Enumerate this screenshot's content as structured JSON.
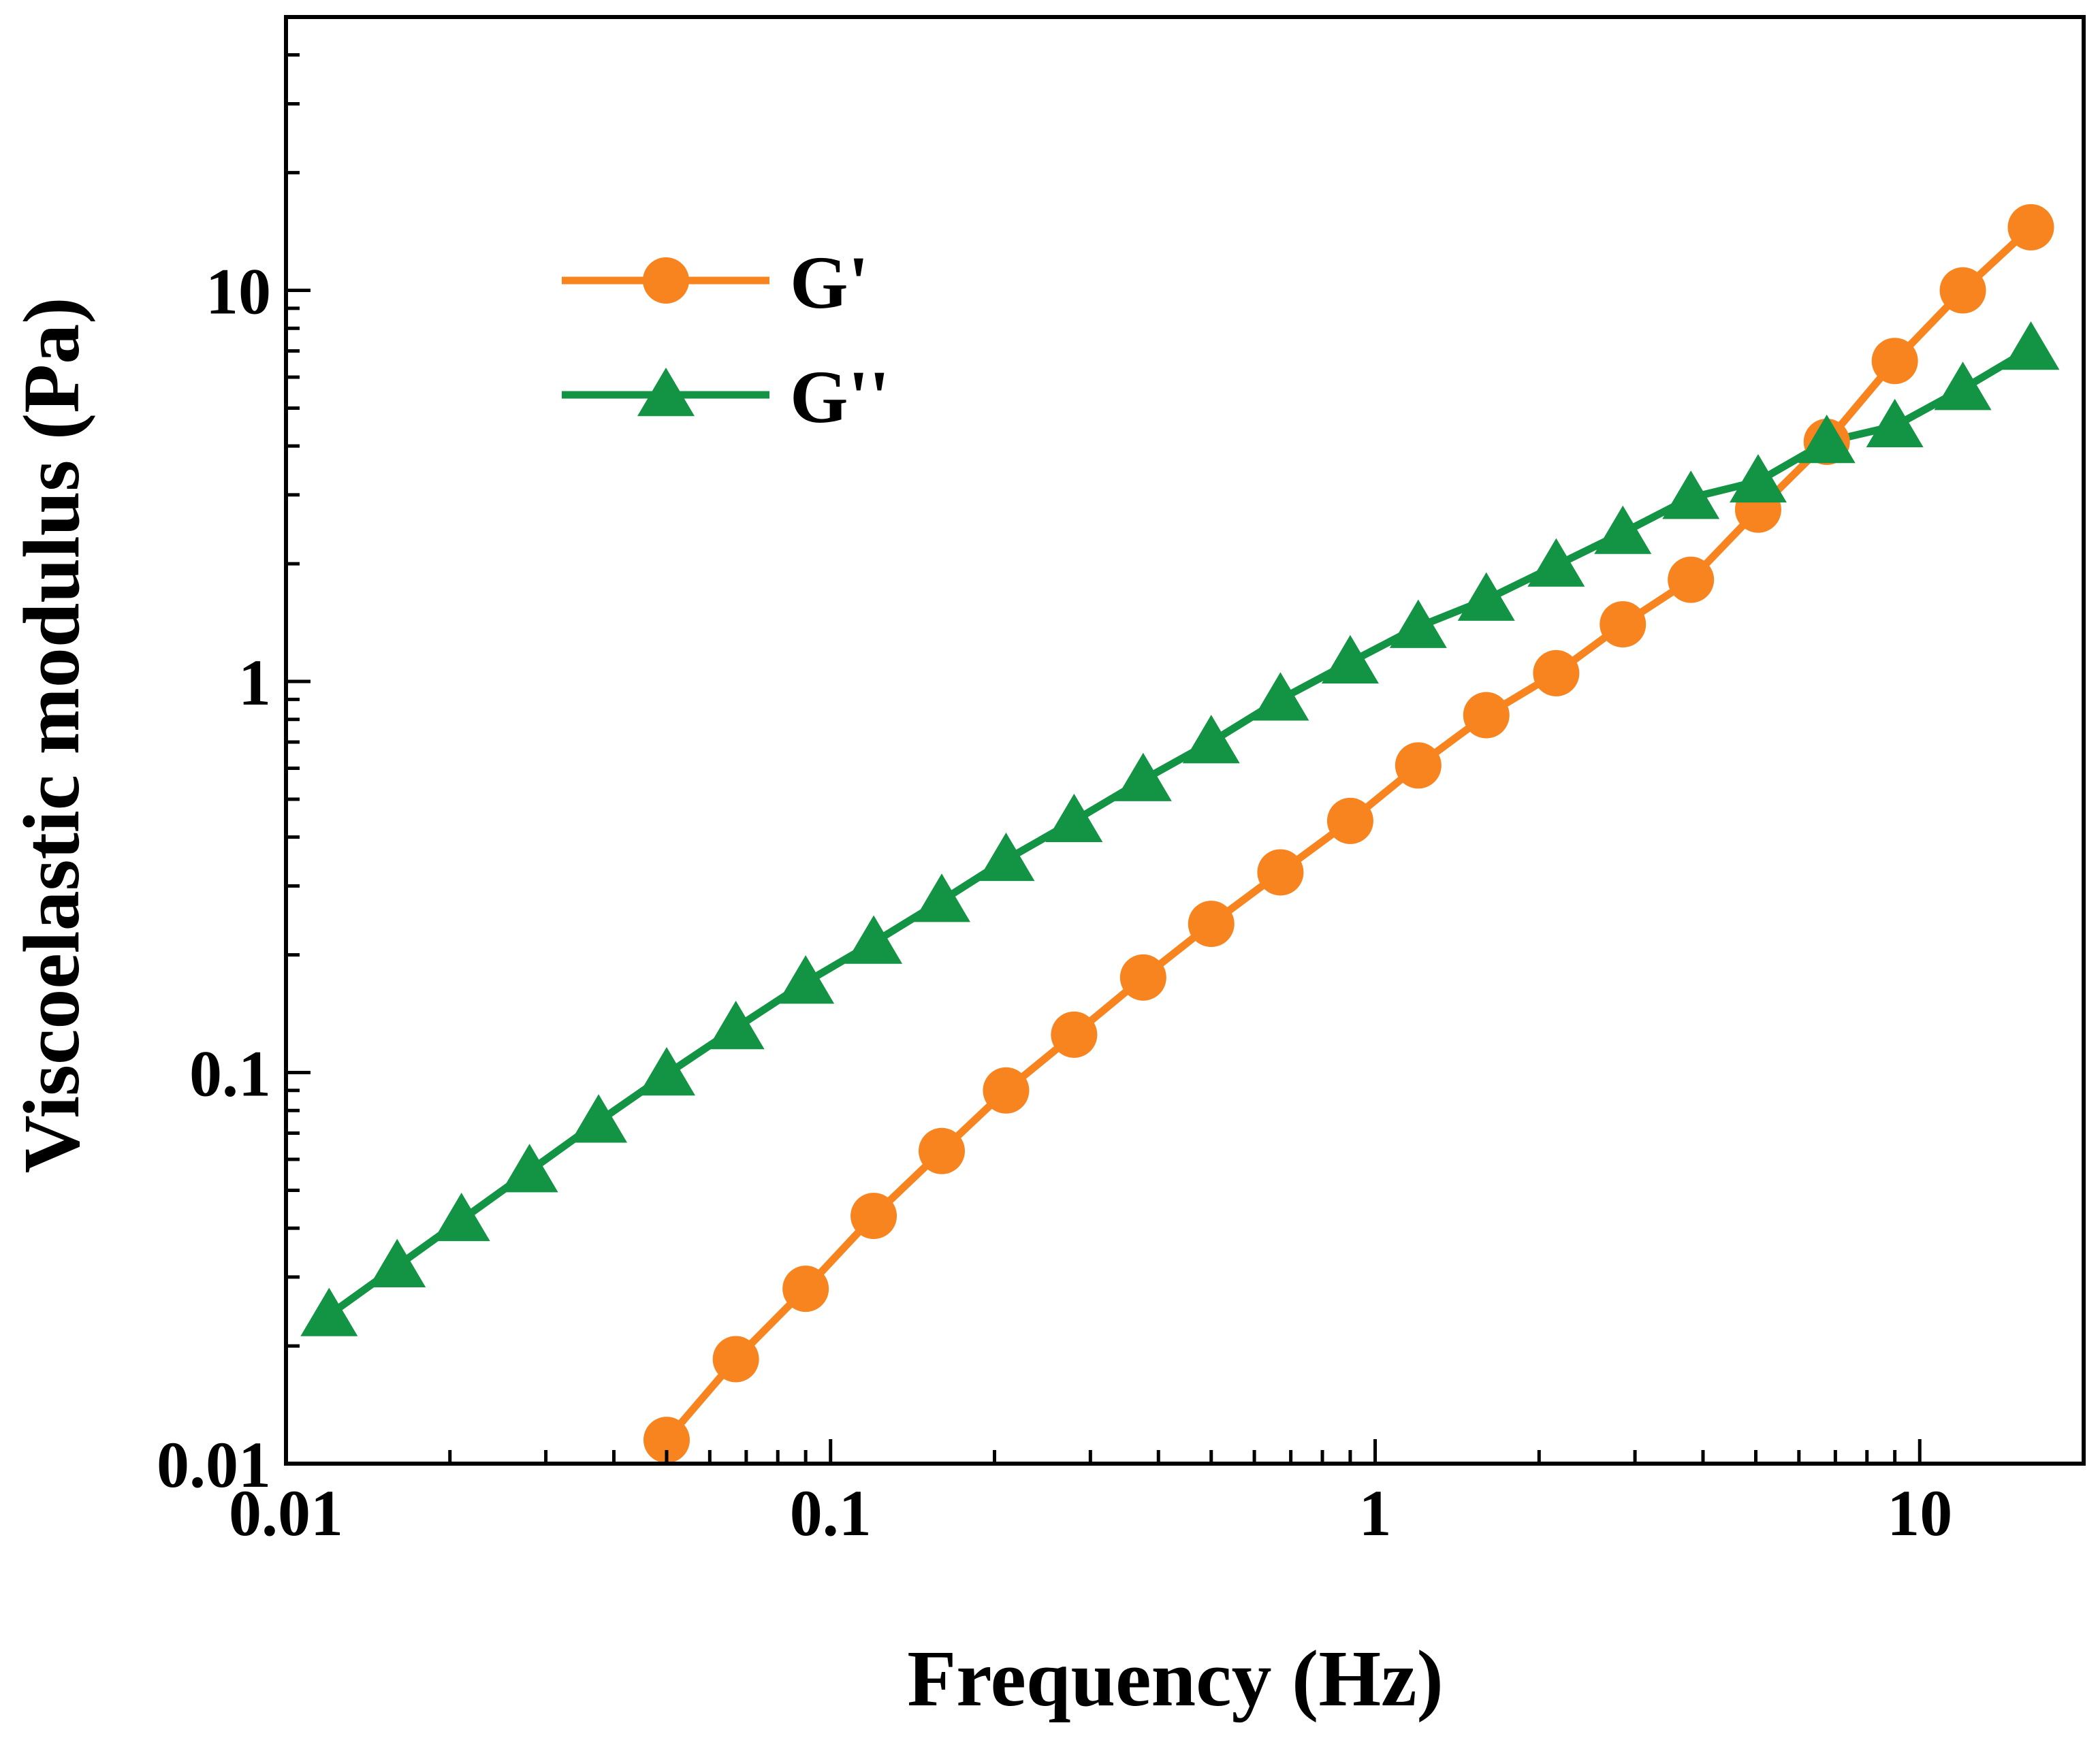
{
  "chart_data": {
    "type": "line",
    "xscale": "log",
    "yscale": "log",
    "xlabel": "Frequency (Hz)",
    "ylabel": "Viscoelastic modulus (Pa)",
    "xlim": [
      0.01,
      20
    ],
    "ylim": [
      0.01,
      50
    ],
    "x_ticks": [
      0.01,
      0.1,
      1,
      10
    ],
    "x_tick_labels": [
      "0.01",
      "0.1",
      "1",
      "10"
    ],
    "y_ticks": [
      0.01,
      0.1,
      1,
      10
    ],
    "y_tick_labels": [
      "0.01",
      "0.1",
      "1",
      "10"
    ],
    "legend_position": "top-left",
    "series": [
      {
        "name": "G'",
        "color": "#f7841f",
        "marker": "circle",
        "x": [
          0.05,
          0.067,
          0.09,
          0.12,
          0.16,
          0.21,
          0.28,
          0.375,
          0.5,
          0.67,
          0.9,
          1.2,
          1.6,
          2.15,
          2.85,
          3.8,
          5.05,
          6.75,
          9.0,
          12.0,
          16.0
        ],
        "y": [
          0.0115,
          0.0185,
          0.028,
          0.043,
          0.063,
          0.09,
          0.125,
          0.175,
          0.24,
          0.325,
          0.44,
          0.61,
          0.82,
          1.05,
          1.4,
          1.82,
          2.75,
          4.1,
          6.6,
          10.0,
          14.5
        ]
      },
      {
        "name": "G''",
        "color": "#139444",
        "marker": "triangle",
        "x": [
          0.012,
          0.016,
          0.021,
          0.028,
          0.0375,
          0.05,
          0.067,
          0.09,
          0.12,
          0.16,
          0.21,
          0.28,
          0.375,
          0.5,
          0.67,
          0.9,
          1.2,
          1.6,
          2.15,
          2.85,
          3.8,
          5.05,
          6.75,
          9.0,
          12.0,
          16.0
        ],
        "y": [
          0.024,
          0.032,
          0.042,
          0.056,
          0.075,
          0.099,
          0.13,
          0.17,
          0.215,
          0.275,
          0.35,
          0.44,
          0.56,
          0.7,
          0.9,
          1.12,
          1.38,
          1.62,
          1.98,
          2.4,
          2.95,
          3.25,
          4.1,
          4.5,
          5.6,
          7.1
        ]
      }
    ]
  }
}
